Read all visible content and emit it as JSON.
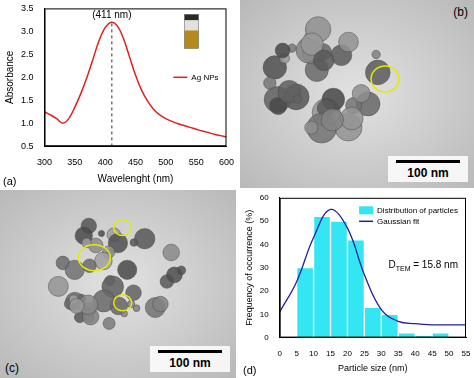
{
  "chart_data": [
    {
      "panel_label": "(a)",
      "type": "line",
      "x_label": "Wavelenght (nm)",
      "y_label": "Absorbance",
      "x": [
        300,
        310,
        320,
        330,
        340,
        350,
        360,
        370,
        380,
        390,
        400,
        410,
        420,
        430,
        440,
        450,
        460,
        470,
        480,
        490,
        500,
        510,
        520,
        530,
        540,
        550,
        560,
        570,
        580,
        590,
        600
      ],
      "series": [
        {
          "name": "Ag NPs",
          "color": "#e02020",
          "values": [
            1.25,
            1.18,
            1.1,
            1.0,
            1.1,
            1.35,
            1.65,
            2.0,
            2.4,
            2.8,
            3.08,
            3.2,
            3.12,
            2.85,
            2.45,
            2.05,
            1.72,
            1.48,
            1.3,
            1.18,
            1.1,
            1.04,
            0.99,
            0.95,
            0.91,
            0.87,
            0.83,
            0.8,
            0.76,
            0.73,
            0.7
          ]
        }
      ],
      "xlim": [
        300,
        600
      ],
      "xticks": [
        300,
        350,
        400,
        450,
        500,
        550,
        600
      ],
      "ylim": [
        0.5,
        3.5
      ],
      "yticks": [
        0.5,
        {
          "value": 1,
          "label": "1.0"
        },
        1.5,
        {
          "value": 2,
          "label": "2.0"
        },
        2.5,
        {
          "value": 3,
          "label": "3.0"
        },
        3.5
      ],
      "grid": false,
      "legend": "right",
      "annotations": [
        {
          "text": "(411 nm)",
          "x": 411
        }
      ]
    },
    {
      "panel_label": "(d)",
      "type": "histogram",
      "x_label": "Particle size (nm)",
      "y_label": "Frequency of occurrence (%)",
      "series": [
        {
          "name": "Distribution of particles",
          "type": "bar",
          "color": "#33e6f2",
          "bins": [
            5,
            10,
            15,
            20,
            25,
            30,
            35,
            40,
            45,
            50
          ],
          "values": [
            30,
            52,
            50,
            42,
            13,
            10,
            2,
            1,
            2
          ]
        },
        {
          "name": "Gaussian fit",
          "type": "line",
          "color": "#2020a0",
          "x": [
            0,
            5,
            10,
            15,
            20,
            25,
            30,
            35,
            40,
            45,
            50,
            55
          ],
          "values": [
            11,
            24,
            43,
            55,
            47,
            27,
            12,
            7,
            6,
            5.5,
            5.5,
            5.5
          ]
        }
      ],
      "xlim": [
        0,
        55
      ],
      "xticks": [
        0,
        5,
        10,
        15,
        20,
        25,
        30,
        35,
        40,
        45,
        50,
        55
      ],
      "ylim": [
        0,
        60
      ],
      "yticks": [
        0,
        10,
        20,
        30,
        40,
        50,
        60
      ],
      "grid": false,
      "legend": "upper right",
      "annotations": [
        {
          "text": "D",
          "subscript": "TEM",
          "after": " = 15.8 nm"
        }
      ]
    }
  ],
  "images": [
    {
      "panel_label": "(b)",
      "scale_bar": "100 nm"
    },
    {
      "panel_label": "(c)",
      "scale_bar": "100 nm"
    }
  ]
}
